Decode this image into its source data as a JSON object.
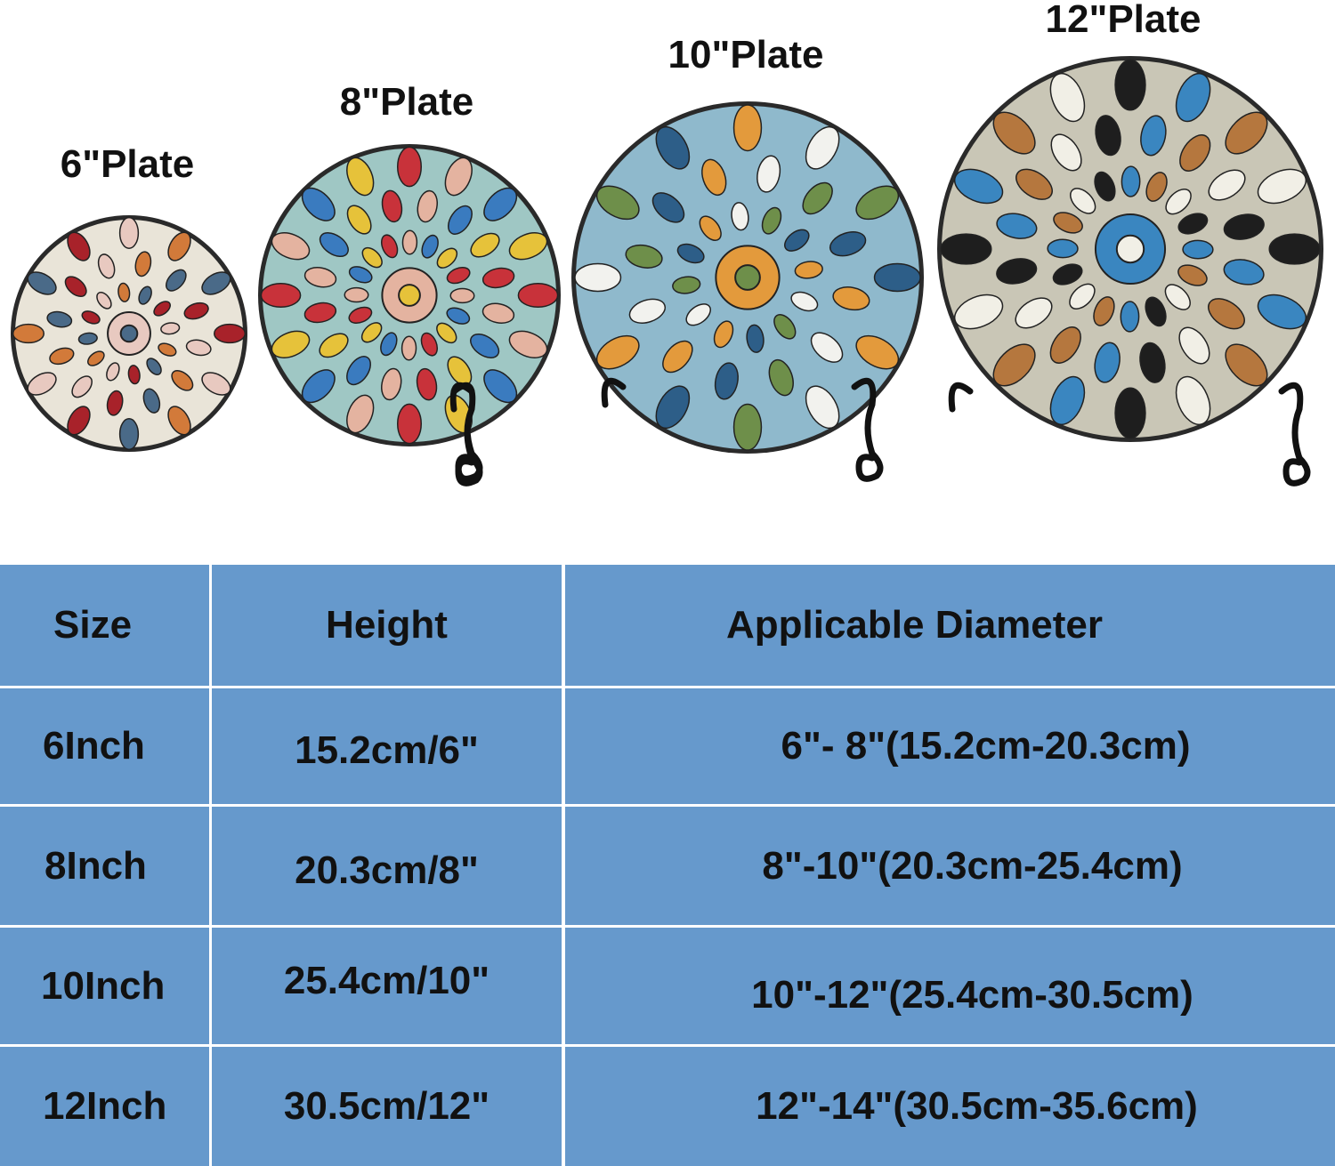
{
  "plates": [
    {
      "label": "6\"Plate",
      "colors": [
        "#e9e4d8",
        "#a8222a",
        "#e8c9c0",
        "#d27a3a",
        "#4a6a88"
      ]
    },
    {
      "label": "8\"Plate",
      "colors": [
        "#9fc7c4",
        "#c8323a",
        "#e4b3a0",
        "#3a7bbf",
        "#e6c23a"
      ]
    },
    {
      "label": "10\"Plate",
      "colors": [
        "#8fb9cc",
        "#2d5e88",
        "#e39a3c",
        "#f2f2ee",
        "#6e8f4a"
      ]
    },
    {
      "label": "12\"Plate",
      "colors": [
        "#c9c6b6",
        "#1e1e1e",
        "#3a86c0",
        "#b5773e",
        "#f1efe6"
      ]
    }
  ],
  "table": {
    "header_color": "#6699cc",
    "headers": [
      "Size",
      "Height",
      "Applicable Diameter"
    ],
    "rows": [
      [
        "6Inch",
        "15.2cm/6\"",
        "6\"- 8\"(15.2cm-20.3cm)"
      ],
      [
        "8Inch",
        "20.3cm/8\"",
        "8\"-10\"(20.3cm-25.4cm)"
      ],
      [
        "10Inch",
        "25.4cm/10\"",
        "10\"-12\"(25.4cm-30.5cm)"
      ],
      [
        "12Inch",
        "30.5cm/12\"",
        "12\"-14\"(30.5cm-35.6cm)"
      ]
    ]
  }
}
